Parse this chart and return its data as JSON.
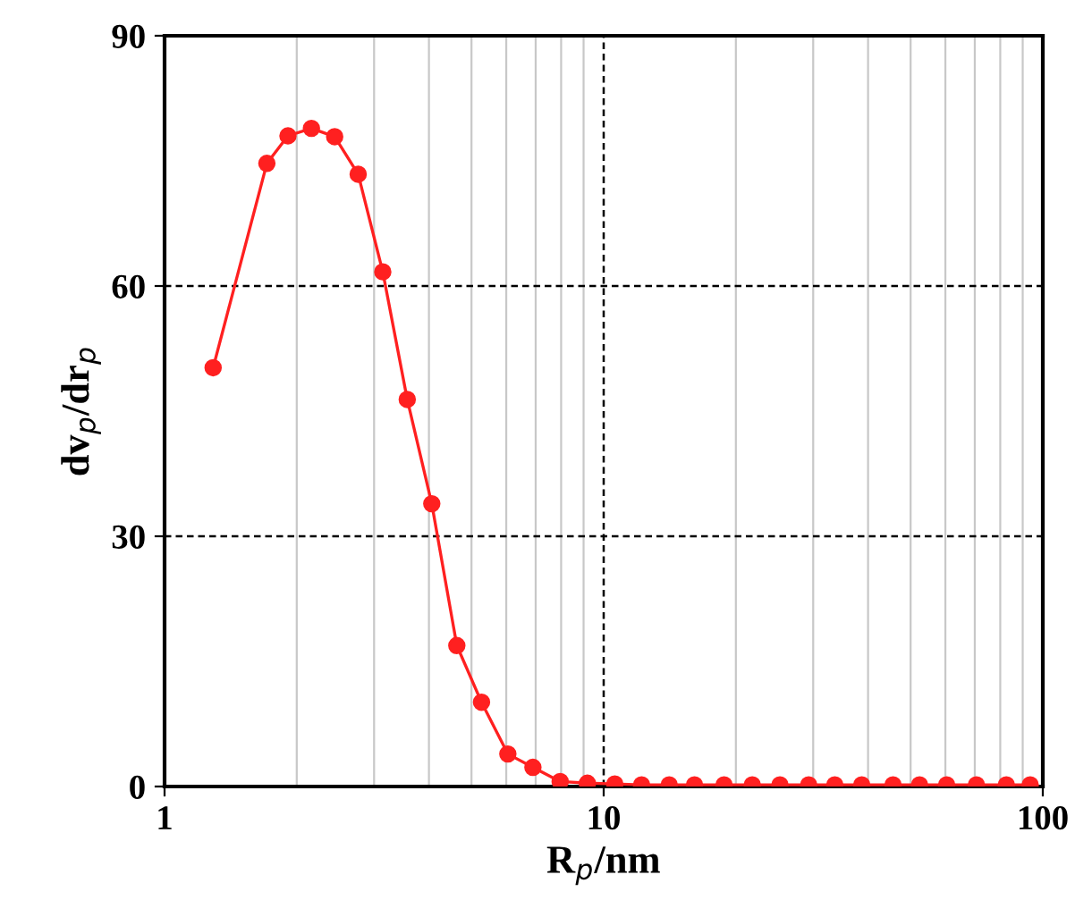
{
  "chart_data": {
    "type": "line",
    "xlabel": "R$_{p}$/nm",
    "ylabel": "dv$_{p}$/dr$_{p}$",
    "log": "x",
    "x": [
      1.29,
      1.71,
      1.91,
      2.16,
      2.44,
      2.76,
      3.14,
      3.57,
      4.06,
      4.63,
      5.27,
      6.05,
      6.9,
      7.96,
      9.18,
      10.6,
      12.2,
      14.1,
      16.1,
      18.8,
      21.8,
      25.2,
      29.3,
      33.6,
      38.7,
      45.6,
      52.4,
      60.4,
      70.6,
      82.6,
      93.6
    ],
    "series": [
      {
        "color": "#ff2020",
        "values": [
          50.2,
          74.7,
          78.0,
          78.9,
          77.9,
          73.4,
          61.7,
          46.4,
          33.9,
          16.9,
          10.1,
          3.9,
          2.3,
          0.6,
          0.4,
          0.3,
          0.2,
          0.2,
          0.2,
          0.2,
          0.2,
          0.2,
          0.2,
          0.2,
          0.2,
          0.2,
          0.2,
          0.2,
          0.2,
          0.2,
          0.2
        ]
      }
    ],
    "xlim": [
      1,
      100
    ],
    "xticks": [
      1,
      10,
      100
    ],
    "ylim": [
      0,
      90
    ],
    "yticks": [
      0,
      30,
      60,
      90
    ],
    "grid": true,
    "marker": "circle",
    "line_style": "solid"
  }
}
